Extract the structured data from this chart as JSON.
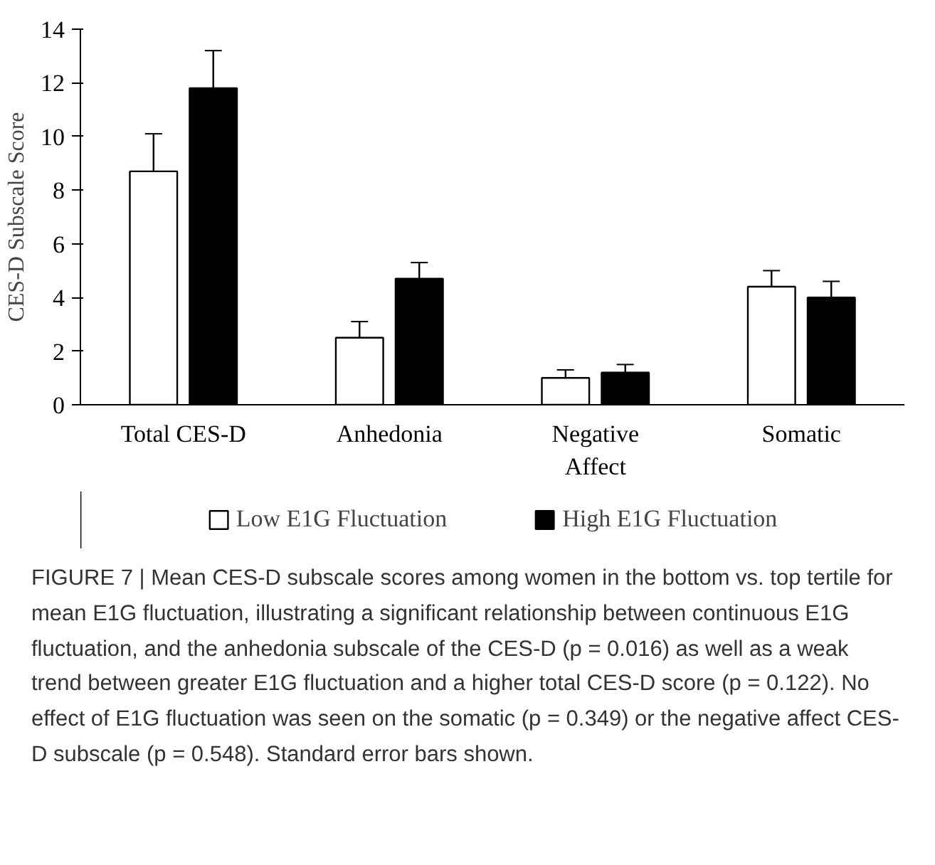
{
  "chart_data": {
    "type": "bar",
    "ylabel": "CES-D Subscale Score",
    "categories": [
      "Total CES-D",
      "Anhedonia",
      "Negative\nAffect",
      "Somatic"
    ],
    "series": [
      {
        "name": "Low E1G Fluctuation",
        "color": "#ffffff",
        "values": [
          8.7,
          2.5,
          1.0,
          4.4
        ],
        "errors": [
          1.4,
          0.6,
          0.3,
          0.6
        ]
      },
      {
        "name": "High E1G Fluctuation",
        "color": "#000000",
        "values": [
          11.8,
          4.7,
          1.2,
          4.0
        ],
        "errors": [
          1.4,
          0.6,
          0.3,
          0.6
        ]
      }
    ],
    "ylim": [
      0,
      14
    ],
    "yticks": [
      0,
      2,
      4,
      6,
      8,
      10,
      12,
      14
    ],
    "grid": false,
    "legend": "bottom",
    "annotations": [
      "FIGURE 7 | Mean CES-D subscale scores among women in the bottom vs. top tertile for mean E1G fluctuation, illustrating a significant relationship between continuous E1G fluctuation, and the anhedonia subscale of the CES-D (p = 0.016) as well as a weak trend between greater E1G fluctuation and a higher total CES-D score (p = 0.122). No effect of E1G fluctuation was seen on the somatic (p = 0.349) or the negative affect CES-D subscale (p = 0.548). Standard error bars shown."
    ]
  }
}
